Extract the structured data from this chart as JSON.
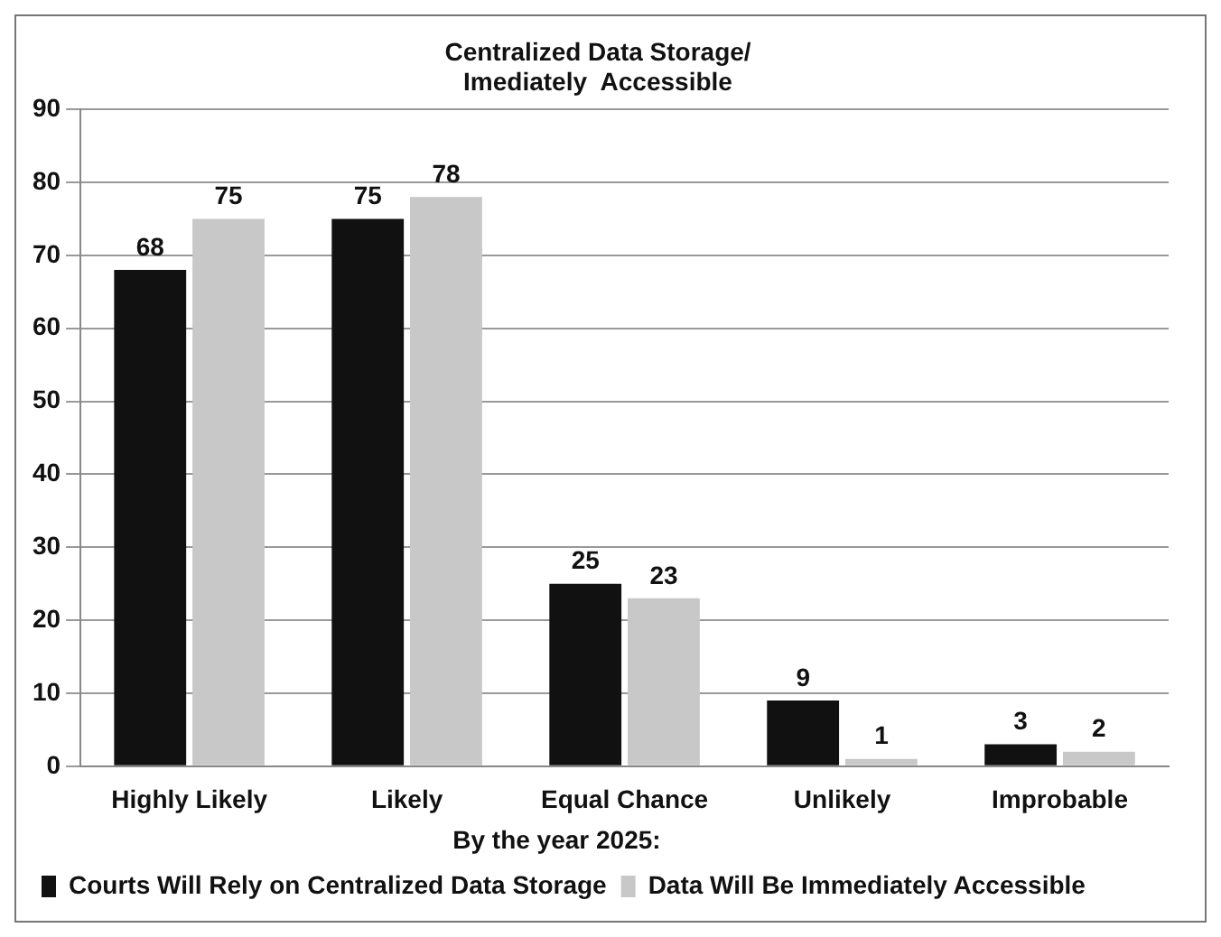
{
  "chart_data": {
    "type": "bar",
    "title": "Centralized Data Storage/ Imediately  Accessible",
    "legend_title": "By the year 2025:",
    "categories": [
      "Highly Likely",
      "Likely",
      "Equal Chance",
      "Unlikely",
      "Improbable"
    ],
    "series": [
      {
        "name": "Courts Will Rely on Centralized Data Storage",
        "color": "#111111",
        "values": [
          68,
          75,
          25,
          9,
          3
        ]
      },
      {
        "name": "Data Will Be Immediately Accessible",
        "color": "#c8c8c8",
        "values": [
          75,
          78,
          23,
          1,
          2
        ]
      }
    ],
    "ylim": [
      0,
      90
    ],
    "yticks": [
      0,
      10,
      20,
      30,
      40,
      50,
      60,
      70,
      80,
      90
    ],
    "grid": "y",
    "legend": "bottom",
    "data_labels": true
  }
}
